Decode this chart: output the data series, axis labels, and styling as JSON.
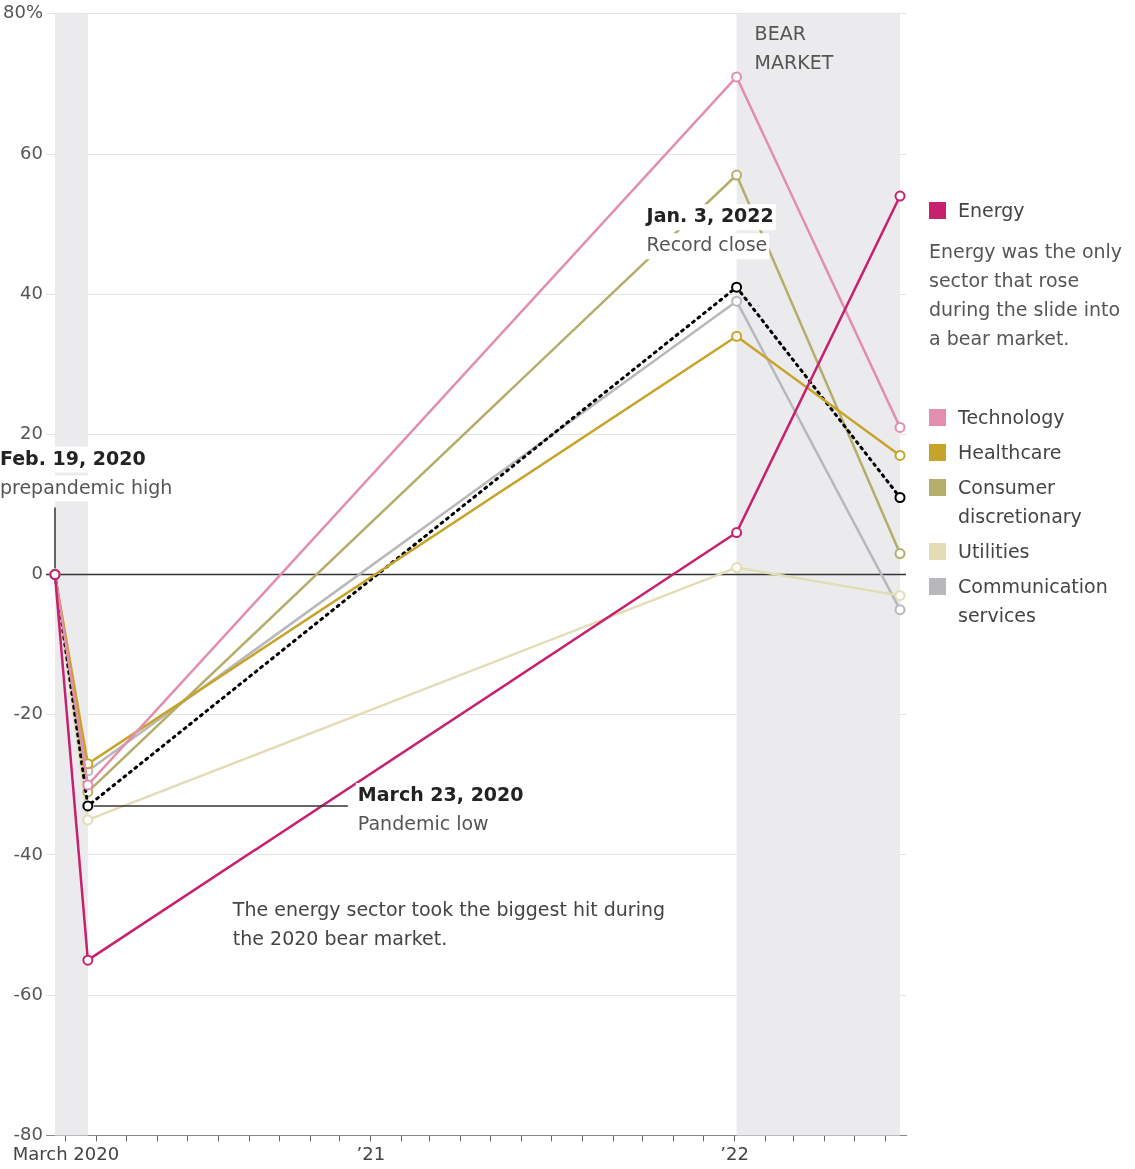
{
  "chart_data": {
    "type": "line",
    "x": [
      "2020-02-19",
      "2020-03-23",
      "2022-01-03",
      "2022-06-16"
    ],
    "series": [
      {
        "name": "Energy",
        "color": "#c7206e",
        "values": [
          0,
          -55,
          6,
          54
        ]
      },
      {
        "name": "Technology",
        "color": "#e28fae",
        "values": [
          0,
          -30,
          71,
          21
        ]
      },
      {
        "name": "Healthcare",
        "color": "#c8a32a",
        "values": [
          0,
          -27,
          34,
          17
        ]
      },
      {
        "color": "#000000",
        "values": [
          0,
          -33,
          41,
          11
        ],
        "line_style": "dotted"
      },
      {
        "name": "Consumer discretionary",
        "color": "#b5ad6a",
        "values": [
          0,
          -31,
          57,
          3
        ]
      },
      {
        "name": "Utilities",
        "color": "#e3dcb5",
        "values": [
          0,
          -35,
          1,
          -3
        ]
      },
      {
        "name": "Communication services",
        "color": "#b8b8bc",
        "values": [
          0,
          -28,
          39,
          -5
        ]
      }
    ],
    "xlim": [
      "2020-02-10",
      "2022-06-22"
    ],
    "xticks": [
      {
        "value": "2020-03-01",
        "label": "March 2020"
      },
      {
        "value": "2020-04-01",
        "label": null
      },
      {
        "value": "2020-05-01",
        "label": null
      },
      {
        "value": "2020-06-01",
        "label": null
      },
      {
        "value": "2020-07-01",
        "label": null
      },
      {
        "value": "2020-08-01",
        "label": null
      },
      {
        "value": "2020-09-01",
        "label": null
      },
      {
        "value": "2020-10-01",
        "label": null
      },
      {
        "value": "2020-11-01",
        "label": null
      },
      {
        "value": "2020-12-01",
        "label": null
      },
      {
        "value": "2021-01-01",
        "label": "’21"
      },
      {
        "value": "2021-02-01",
        "label": null
      },
      {
        "value": "2021-03-01",
        "label": null
      },
      {
        "value": "2021-04-01",
        "label": null
      },
      {
        "value": "2021-05-01",
        "label": null
      },
      {
        "value": "2021-06-01",
        "label": null
      },
      {
        "value": "2021-07-01",
        "label": null
      },
      {
        "value": "2021-08-01",
        "label": null
      },
      {
        "value": "2021-09-01",
        "label": null
      },
      {
        "value": "2021-10-01",
        "label": null
      },
      {
        "value": "2021-11-01",
        "label": null
      },
      {
        "value": "2021-12-01",
        "label": null
      },
      {
        "value": "2022-01-01",
        "label": "’22"
      },
      {
        "value": "2022-02-01",
        "label": null
      },
      {
        "value": "2022-03-01",
        "label": null
      },
      {
        "value": "2022-04-01",
        "label": null
      },
      {
        "value": "2022-05-01",
        "label": null
      },
      {
        "value": "2022-06-01",
        "label": null
      }
    ],
    "ylim": [
      -80,
      80
    ],
    "yticks": [
      -80,
      -60,
      -40,
      -20,
      0,
      20,
      40,
      60,
      {
        "value": 80,
        "label": "80%"
      }
    ],
    "grid": "y",
    "marker": "circle",
    "line_style": "solid",
    "legend": "right",
    "ref_lines": [
      {
        "axis": "y",
        "value": 0,
        "color": "#333333"
      }
    ],
    "bands": [
      {
        "axis": "x",
        "from": "2020-02-19",
        "to": "2020-03-23",
        "color": "#ebebed"
      },
      {
        "axis": "x",
        "from": "2022-01-03",
        "to": "2022-06-16",
        "label": "BEAR\nMARKET",
        "color": "#ebebed"
      }
    ],
    "annotations": [
      {
        "text": "Feb. 19, 2020\nprepandemic high",
        "x": "2020-02-19",
        "y": 0
      },
      {
        "text": "Jan. 3, 2022\nRecord close",
        "x": "2022-01-03",
        "y": 41
      },
      {
        "text": "March 23, 2020\nPandemic low",
        "x": "2020-03-23",
        "y": -33
      },
      "The energy sector took the biggest hit during\nthe 2020 bear market.",
      "Energy was the only\nsector that rose\nduring the slide into\na bear market."
    ]
  }
}
